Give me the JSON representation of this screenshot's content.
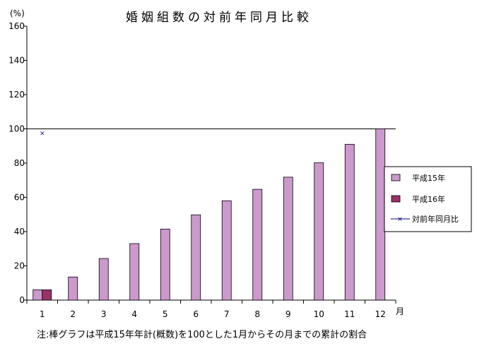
{
  "chart_data": {
    "type": "bar",
    "title": "婚姻組数の対前年同月比較",
    "ylabel": "(%)",
    "xlabel": "月",
    "ylim": [
      0,
      160
    ],
    "yticks": [
      0,
      20,
      40,
      60,
      80,
      100,
      120,
      140,
      160
    ],
    "categories": [
      "1",
      "2",
      "3",
      "4",
      "5",
      "6",
      "7",
      "8",
      "9",
      "10",
      "11",
      "12"
    ],
    "series": [
      {
        "name": "平成15年",
        "type": "bar",
        "color": "#cc99cc",
        "values": [
          6,
          13.5,
          24.3,
          33,
          41.5,
          49.8,
          58,
          64.7,
          71.8,
          80.2,
          91,
          100
        ]
      },
      {
        "name": "平成16年",
        "type": "bar",
        "color": "#993366",
        "values": [
          6,
          null,
          null,
          null,
          null,
          null,
          null,
          null,
          null,
          null,
          null,
          null
        ]
      },
      {
        "name": "対前年同月比",
        "type": "scatter",
        "marker": "x",
        "color": "#000080",
        "values": [
          97.5,
          null,
          null,
          null,
          null,
          null,
          null,
          null,
          null,
          null,
          null,
          null
        ]
      }
    ],
    "reference_line": 100,
    "grid": false,
    "legend_position": "right"
  },
  "footnote": "注:棒グラフは平成15年年計(概数)を100とした1月からその月までの累計の割合"
}
